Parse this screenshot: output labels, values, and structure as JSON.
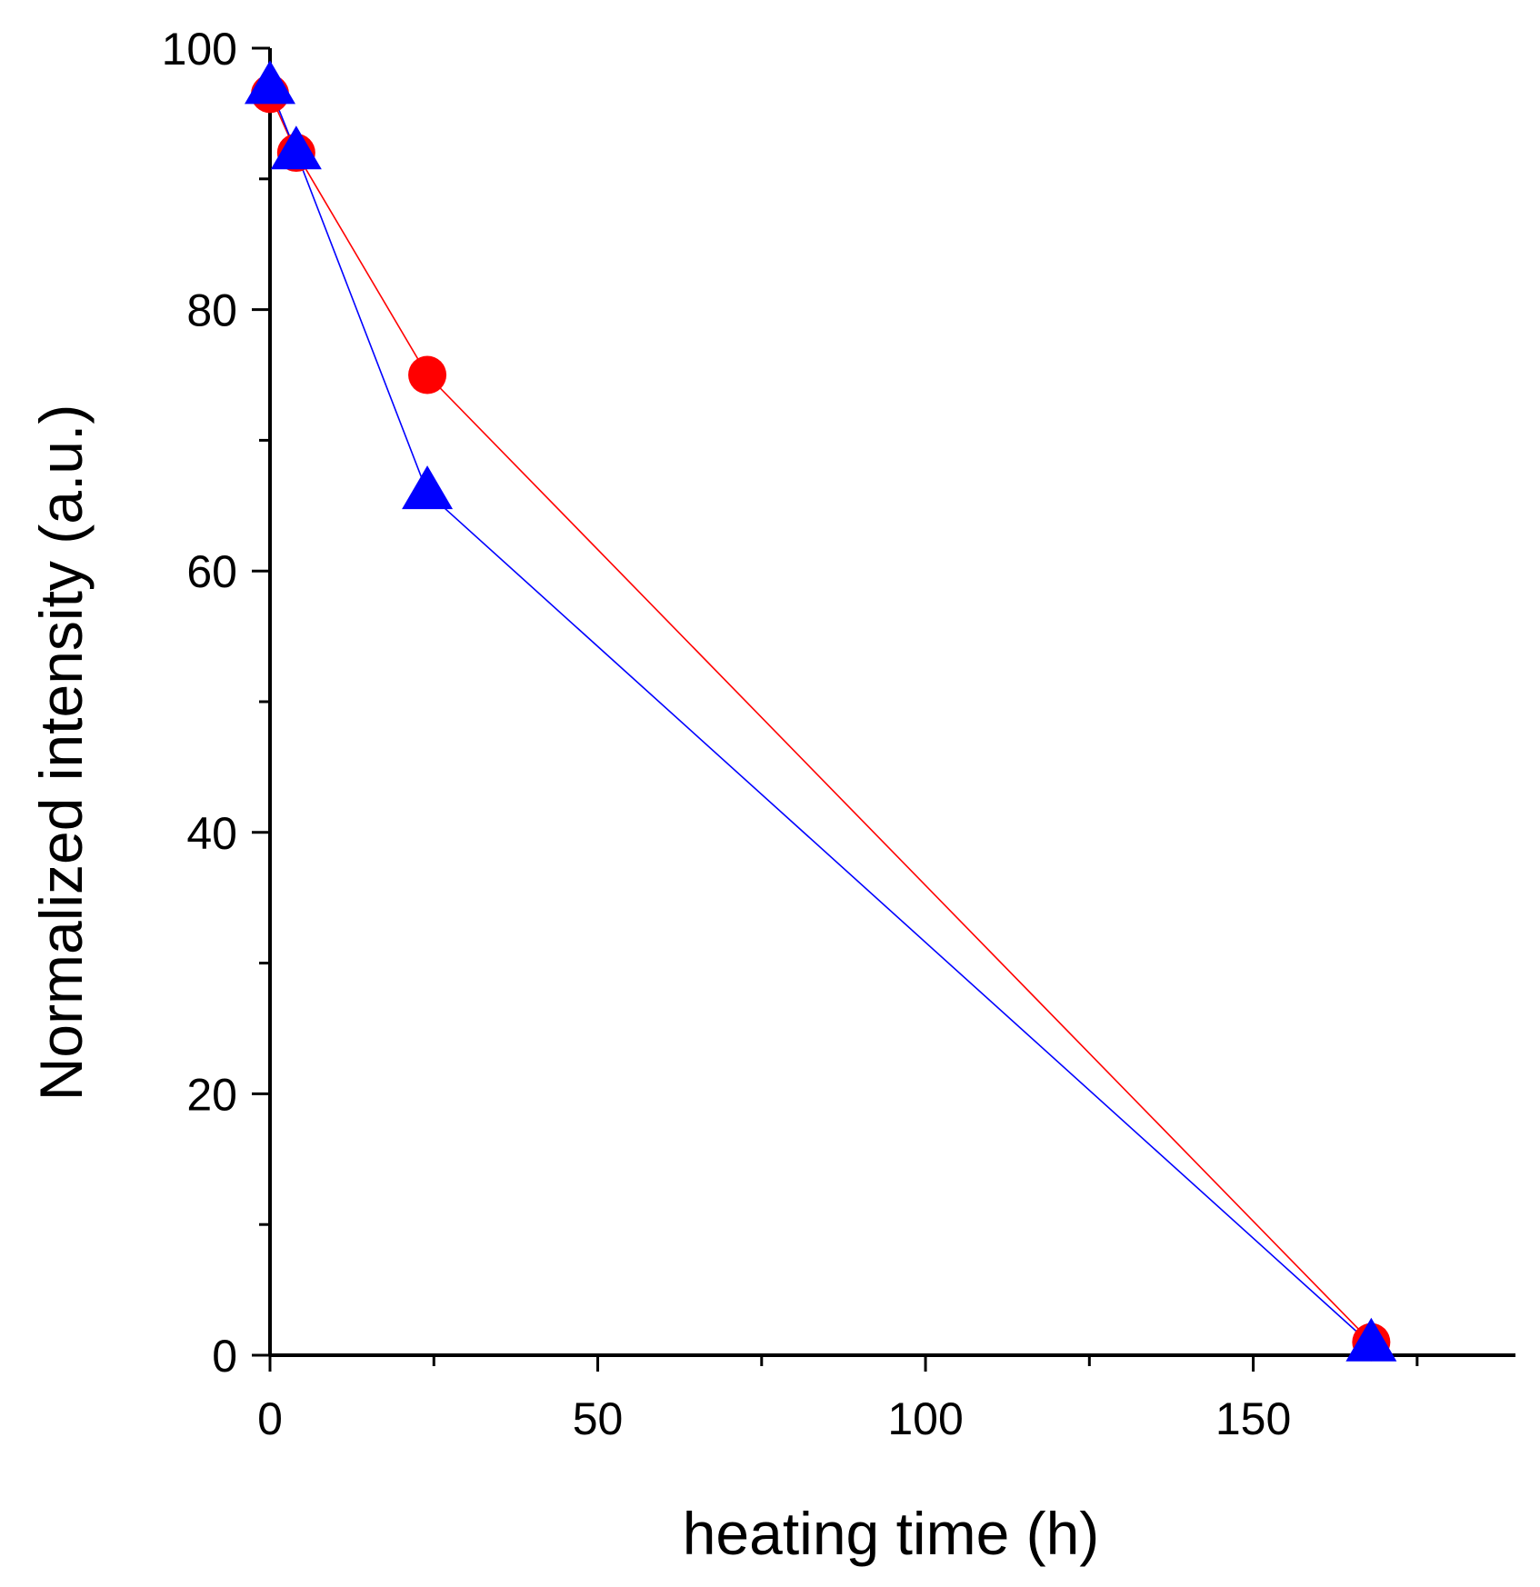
{
  "chart_data": {
    "type": "line",
    "title": "",
    "xlabel": "heating time (h)",
    "ylabel": "Normalized intensity (a.u.)",
    "xlim": [
      0,
      190
    ],
    "ylim": [
      0,
      100
    ],
    "x_major_ticks": [
      0,
      50,
      100,
      150
    ],
    "x_minor_ticks": [
      25,
      75,
      125,
      175
    ],
    "x_tick_labels": [
      "0",
      "50",
      "100",
      "150"
    ],
    "y_major_ticks": [
      0,
      20,
      40,
      60,
      80,
      100
    ],
    "y_minor_ticks": [
      10,
      30,
      50,
      70,
      90
    ],
    "y_tick_labels": [
      "0",
      "20",
      "40",
      "60",
      "80",
      "100"
    ],
    "grid": false,
    "legend": "none",
    "series": [
      {
        "name": "circles",
        "marker": "circle",
        "color": "#ff0000",
        "x": [
          0,
          4,
          24,
          168
        ],
        "y": [
          96.5,
          92,
          75,
          1
        ]
      },
      {
        "name": "triangles",
        "marker": "triangle",
        "color": "#0000ff",
        "x": [
          0,
          4,
          24,
          168
        ],
        "y": [
          97,
          92,
          66,
          0.8
        ]
      }
    ]
  }
}
